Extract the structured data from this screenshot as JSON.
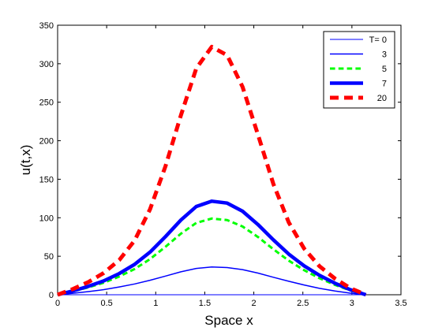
{
  "chart_data": {
    "type": "line",
    "title": "",
    "xlabel": "Space x",
    "ylabel": "u(t,x)",
    "xlim": [
      0,
      3.5
    ],
    "ylim": [
      0,
      350
    ],
    "xticks": [
      0,
      0.5,
      1,
      1.5,
      2,
      2.5,
      3,
      3.5
    ],
    "yticks": [
      0,
      50,
      100,
      150,
      200,
      250,
      300,
      350
    ],
    "xtick_labels": [
      "0",
      "0.5",
      "1",
      "1.5",
      "2",
      "2.5",
      "3",
      "3.5"
    ],
    "ytick_labels": [
      "0",
      "50",
      "100",
      "150",
      "200",
      "250",
      "300",
      "350"
    ],
    "grid": false,
    "legend_position": "top-right",
    "x": [
      0,
      0.157,
      0.314,
      0.471,
      0.628,
      0.785,
      0.942,
      1.1,
      1.257,
      1.414,
      1.571,
      1.728,
      1.885,
      2.042,
      2.199,
      2.356,
      2.513,
      2.67,
      2.827,
      2.985,
      3.142
    ],
    "series": [
      {
        "name": "T= 0",
        "color": "#0000ff",
        "style": "solid",
        "width": 1,
        "values": [
          0,
          0,
          0,
          0,
          0,
          0,
          0,
          0,
          0,
          0,
          0,
          0,
          0,
          0,
          0,
          0,
          0,
          0,
          0,
          0,
          0
        ]
      },
      {
        "name": "3",
        "color": "#0000ff",
        "style": "solid",
        "width": 1.5,
        "values": [
          0,
          1.9,
          4.1,
          6.7,
          10.1,
          14.0,
          18.8,
          24.3,
          29.8,
          34.2,
          36.0,
          35.3,
          32.6,
          28.1,
          22.7,
          17.5,
          12.7,
          8.3,
          4.8,
          2.0,
          0
        ]
      },
      {
        "name": "5",
        "color": "#00ff00",
        "style": "dashed",
        "width": 3,
        "values": [
          0,
          4.5,
          9.6,
          15.7,
          23.7,
          33.5,
          46.3,
          62.3,
          79.3,
          93.3,
          99.0,
          97.0,
          88.6,
          75.0,
          59.2,
          44.3,
          31.9,
          21.5,
          12.8,
          5.5,
          0
        ]
      },
      {
        "name": "7",
        "color": "#0000ff",
        "style": "solid",
        "width": 4.5,
        "values": [
          0,
          5.0,
          10.9,
          18.0,
          27.5,
          39.5,
          55.4,
          75.5,
          97.0,
          114.6,
          121.5,
          119.0,
          108.5,
          91.2,
          71.3,
          52.8,
          37.6,
          25.2,
          14.9,
          6.4,
          0
        ]
      },
      {
        "name": "20",
        "color": "#ff0000",
        "style": "dashed",
        "width": 5,
        "values": [
          0,
          7.5,
          16.5,
          28.3,
          45.0,
          70.5,
          111.0,
          167.0,
          233.0,
          294.0,
          322.0,
          311.0,
          270.0,
          208.0,
          144.0,
          94.0,
          60.0,
          37.0,
          21.0,
          8.5,
          0
        ]
      }
    ]
  }
}
